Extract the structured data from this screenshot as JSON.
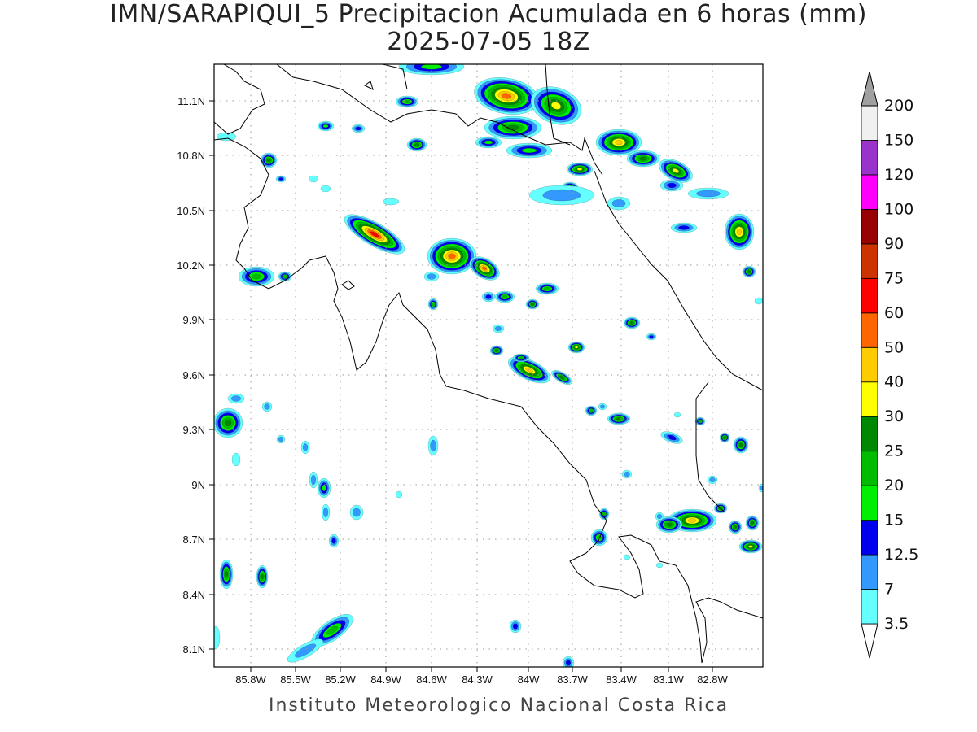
{
  "title_line1": "IMN/SARAPIQUI_5 Precipitacion Acumulada en 6 horas (mm)",
  "title_line2": "2025-07-05 18Z",
  "footer": "Instituto Meteorologico Nacional Costa Rica",
  "map": {
    "lon_range": [
      -86.0,
      -82.6
    ],
    "lat_range": [
      8.0,
      11.3
    ],
    "lon_ticks": [
      "85.8W",
      "85.5W",
      "85.2W",
      "84.9W",
      "84.6W",
      "84.3W",
      "84W",
      "83.7W",
      "83.4W",
      "83.1W",
      "82.8W"
    ],
    "lat_ticks": [
      "11.1N",
      "10.8N",
      "10.5N",
      "10.2N",
      "9.9N",
      "9.6N",
      "9.3N",
      "9N",
      "8.7N",
      "8.4N",
      "8.1N"
    ],
    "grid": true
  },
  "colorbar": {
    "levels": [
      "3.5",
      "7",
      "12.5",
      "15",
      "20",
      "25",
      "30",
      "40",
      "50",
      "60",
      "75",
      "90",
      "100",
      "120",
      "150",
      "200"
    ],
    "colors": [
      "#66ffff",
      "#3399ff",
      "#0000ee",
      "#00ee00",
      "#00bb00",
      "#008800",
      "#ffff00",
      "#ffcc00",
      "#ff6600",
      "#ff0000",
      "#cc3300",
      "#990000",
      "#ff00ff",
      "#9933cc",
      "#f0f0f0",
      "#a0a0a0"
    ]
  }
}
